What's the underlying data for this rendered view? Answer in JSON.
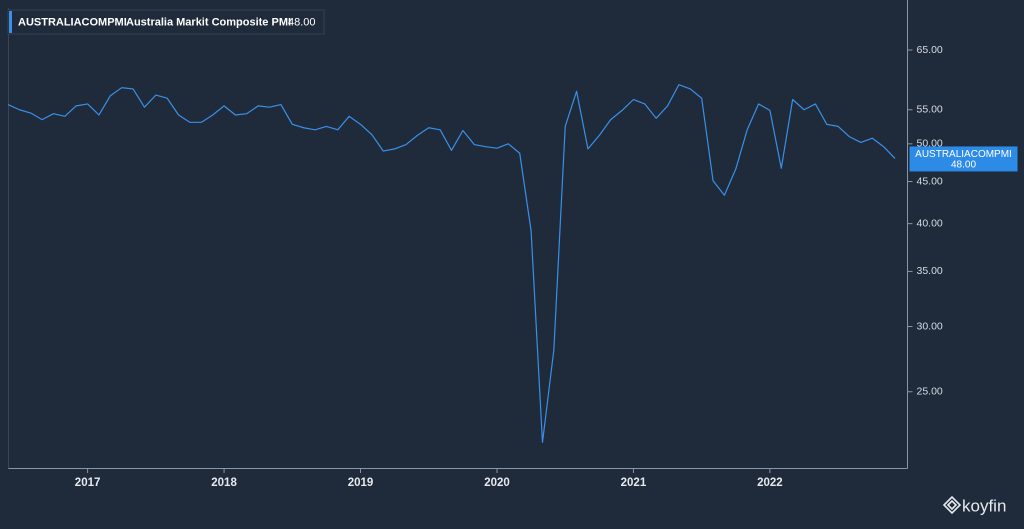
{
  "chart_data": {
    "type": "line",
    "series": [
      {
        "name": "AUSTRALIACOMPMI",
        "description": "Australia Markit Composite PMI",
        "last_label": "48.00",
        "color": "#3a8fe8",
        "values": [
          55.8,
          55.0,
          54.5,
          53.5,
          54.4,
          54.0,
          55.6,
          55.9,
          54.2,
          57.2,
          58.5,
          58.3,
          55.4,
          57.3,
          56.8,
          54.2,
          53.1,
          53.1,
          54.2,
          55.6,
          54.2,
          54.4,
          55.6,
          55.4,
          55.8,
          52.8,
          52.3,
          52.0,
          52.5,
          52.0,
          54.0,
          52.8,
          51.3,
          49.0,
          49.3,
          49.9,
          51.2,
          52.3,
          52.0,
          49.1,
          51.9,
          49.9,
          49.6,
          49.4,
          50.0,
          48.7,
          39.2,
          21.7,
          28.1,
          52.5,
          57.9,
          49.3,
          51.2,
          53.5,
          54.9,
          56.6,
          55.9,
          53.7,
          55.6,
          59.0,
          58.3,
          56.8,
          45.1,
          43.3,
          46.6,
          52.0,
          55.9,
          54.9,
          46.7,
          56.6,
          55.0,
          55.9,
          52.8,
          52.5,
          51.0,
          50.2,
          50.8,
          49.6,
          48.0
        ]
      }
    ],
    "categories": [
      null,
      null,
      null,
      null,
      null,
      null,
      null,
      "2017",
      null,
      null,
      null,
      null,
      null,
      null,
      null,
      null,
      null,
      null,
      null,
      "2018",
      null,
      null,
      null,
      null,
      null,
      null,
      null,
      null,
      null,
      null,
      null,
      "2019",
      null,
      null,
      null,
      null,
      null,
      null,
      null,
      null,
      null,
      null,
      null,
      "2020",
      null,
      null,
      null,
      null,
      null,
      null,
      null,
      null,
      null,
      null,
      null,
      "2021",
      null,
      null,
      null,
      null,
      null,
      null,
      null,
      null,
      null,
      null,
      null,
      "2022",
      null,
      null,
      null,
      null,
      null,
      null,
      null,
      null,
      null,
      null,
      null
    ],
    "ylim": [
      20.2,
      73.1
    ],
    "log_scale": true,
    "yticks": [
      {
        "value": 25,
        "label": "25.00"
      },
      {
        "value": 30,
        "label": "30.00"
      },
      {
        "value": 35,
        "label": "35.00"
      },
      {
        "value": 40,
        "label": "40.00"
      },
      {
        "value": 45,
        "label": "45.00"
      },
      {
        "value": 50,
        "label": "50.00"
      },
      {
        "value": 55,
        "label": "55.00"
      },
      {
        "value": 65,
        "label": "65.00"
      }
    ],
    "brand": "koyfin"
  }
}
